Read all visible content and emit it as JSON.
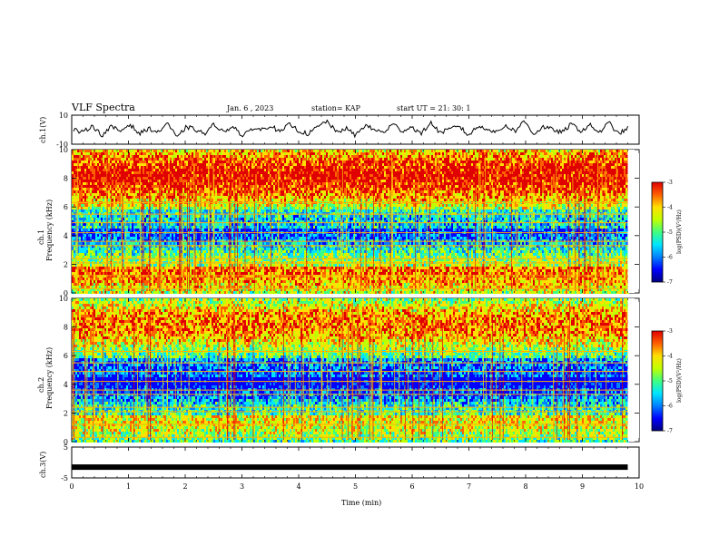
{
  "header": {
    "title": "VLF Spectra",
    "date": "Jan. 6 , 2023",
    "station": "station= KAP",
    "start": "start UT = 21: 30: 1"
  },
  "labels": {
    "ch1_wave": "ch.1(V)",
    "ch1_spec_a": "ch.1",
    "ch1_spec_b": "Frequency (kHz)",
    "ch2_spec_a": "ch.2",
    "ch2_spec_b": "Frequency (kHz)",
    "ch3_wave": "ch.3(V)",
    "xlabel": "Time (min)",
    "colorbar": "log(PSD)(V²/Hz)"
  },
  "colors": {
    "colormap": [
      "#00007f",
      "#0000ff",
      "#0080ff",
      "#00e5ff",
      "#40ff80",
      "#c0ff00",
      "#ffe000",
      "#ff6000",
      "#e00000",
      "#ffffff"
    ]
  },
  "chart_data": [
    {
      "type": "line",
      "title": "VLF Spectra",
      "series": [
        {
          "name": "ch.1(V)",
          "description": "noisy waveform near 0 V",
          "values": [
            0,
            -2,
            3,
            -4,
            2,
            -1,
            4,
            -3,
            1,
            -2,
            5,
            -6,
            2,
            0,
            -3,
            4,
            -2,
            3,
            -5,
            1,
            0,
            3,
            -2,
            4,
            -1,
            -3,
            2,
            6,
            -2,
            1,
            -4,
            3,
            0,
            -2,
            4,
            -1,
            2,
            -3,
            5,
            -2,
            0,
            3,
            -4,
            2,
            1,
            -2,
            3,
            -1,
            6,
            -3,
            2,
            0,
            -2,
            4,
            -1,
            3,
            -2,
            5,
            -3,
            1
          ]
        }
      ],
      "x": {
        "min": 0,
        "max": 10,
        "label": "Time (min)"
      },
      "ylabel": "ch.1(V)",
      "ylim": [
        -10,
        10
      ],
      "yticks": [
        10,
        -10
      ]
    },
    {
      "type": "heatmap",
      "name": "ch.1",
      "ylabel": "Frequency (kHz)",
      "ylim": [
        0,
        10
      ],
      "yticks": [
        0,
        2,
        4,
        6,
        8,
        10
      ],
      "xlim": [
        0,
        10
      ],
      "data_extent_min": 9.8,
      "colorbar": {
        "label": "log(PSD)(V²/Hz)",
        "range": [
          -7,
          -3
        ],
        "ticks": [
          -3,
          -4,
          -5,
          -6,
          -7
        ]
      },
      "horizontal_lines_khz": [
        0.3,
        1.2,
        2.1,
        2.4,
        3.3,
        3.6,
        4.2,
        4.9,
        5.5,
        6.3
      ]
    },
    {
      "type": "heatmap",
      "name": "ch.2",
      "ylabel": "Frequency (kHz)",
      "ylim": [
        0,
        10
      ],
      "yticks": [
        0,
        2,
        4,
        6,
        8,
        10
      ],
      "xlim": [
        0,
        10
      ],
      "data_extent_min": 9.8,
      "colorbar": {
        "label": "log(PSD)(V²/Hz)",
        "range": [
          -7,
          -3
        ],
        "ticks": [
          -3,
          -4,
          -5,
          -6,
          -7
        ]
      },
      "horizontal_lines_khz": [
        0.3,
        1.2,
        2.1,
        2.4,
        3.3,
        3.6,
        4.2,
        4.9,
        5.5,
        6.3
      ]
    },
    {
      "type": "line",
      "series": [
        {
          "name": "ch.3(V)",
          "description": "constant signal",
          "values": [
            -1.5,
            -1.5
          ]
        }
      ],
      "ylabel": "ch.3(V)",
      "ylim": [
        -5,
        5
      ],
      "yticks": [
        5,
        -5
      ]
    }
  ],
  "xaxis": {
    "label": "Time (min)",
    "ticks": [
      "0",
      "1",
      "2",
      "3",
      "4",
      "5",
      "6",
      "7",
      "8",
      "9",
      "10"
    ]
  }
}
